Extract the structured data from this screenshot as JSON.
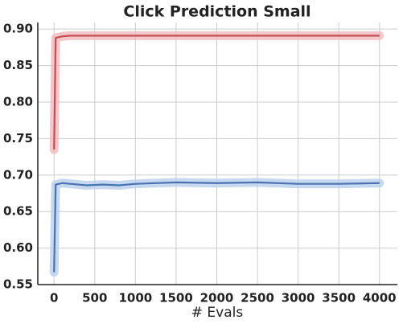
{
  "chart_data": {
    "type": "line",
    "title": "Click Prediction Small",
    "x_label": "# Evals",
    "x": [
      0,
      20,
      100,
      200,
      400,
      600,
      800,
      1000,
      1500,
      2000,
      2500,
      3000,
      3500,
      4000
    ],
    "series": [
      {
        "color": "#c44e52",
        "band_color": "#f2b8bd",
        "values": [
          0.735,
          0.888,
          0.89,
          0.891,
          0.891,
          0.891,
          0.891,
          0.891,
          0.891,
          0.891,
          0.891,
          0.891,
          0.891,
          0.891
        ]
      },
      {
        "color": "#4c72b0",
        "band_color": "#b8cfee",
        "values": [
          0.567,
          0.687,
          0.689,
          0.688,
          0.686,
          0.687,
          0.686,
          0.688,
          0.69,
          0.689,
          0.69,
          0.688,
          0.688,
          0.689
        ]
      }
    ],
    "xlim": [
      -200,
      4220
    ],
    "ylim": [
      0.55,
      0.909
    ],
    "xticks": [
      0,
      500,
      1000,
      1500,
      2000,
      2500,
      3000,
      3500,
      4000
    ],
    "yticks": [
      {
        "value": 0.55,
        "label": "0.55"
      },
      {
        "value": 0.6,
        "label": "0.60"
      },
      {
        "value": 0.65,
        "label": "0.65"
      },
      {
        "value": 0.7,
        "label": "0.70"
      },
      {
        "value": 0.75,
        "label": "0.75"
      },
      {
        "value": 0.8,
        "label": "0.80"
      },
      {
        "value": 0.85,
        "label": "0.85"
      },
      {
        "value": 0.9,
        "label": "0.90"
      }
    ],
    "grid": true
  }
}
